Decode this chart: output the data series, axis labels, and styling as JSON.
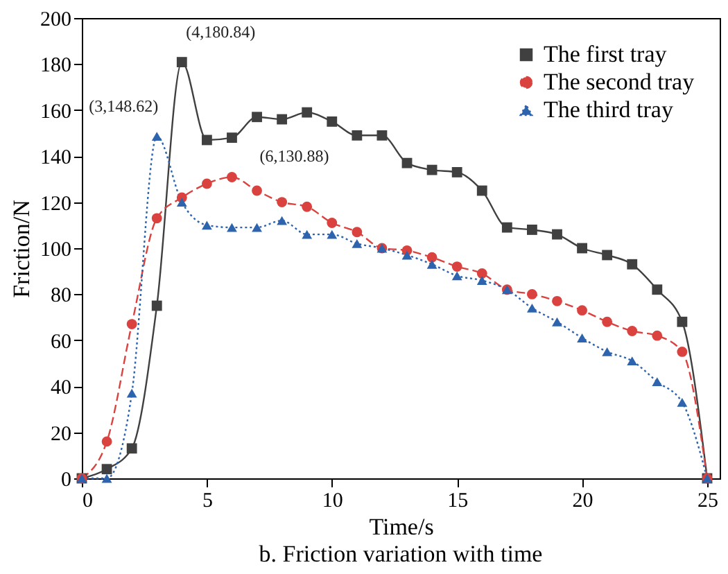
{
  "chart_data": {
    "type": "line",
    "title": "b. Friction variation with time",
    "xlabel": "Time/s",
    "ylabel": "Friction/N",
    "x": [
      0,
      1,
      2,
      3,
      4,
      5,
      6,
      7,
      8,
      9,
      10,
      11,
      12,
      13,
      14,
      15,
      16,
      17,
      18,
      19,
      20,
      21,
      22,
      23,
      24,
      25
    ],
    "series": [
      {
        "name": "The first tray",
        "color": "#404040",
        "marker": "square",
        "line_style": "solid",
        "values": [
          0,
          4,
          13,
          75,
          180.84,
          147,
          148,
          157,
          156,
          159,
          155,
          149,
          149,
          137,
          134,
          133,
          125,
          109,
          108,
          106,
          100,
          97,
          93,
          82,
          68,
          0
        ]
      },
      {
        "name": "The second tray",
        "color": "#d9423f",
        "marker": "circle",
        "line_style": "dashed",
        "values": [
          0,
          16,
          67,
          113,
          122,
          128,
          130.88,
          125,
          120,
          118,
          111,
          107,
          100,
          99,
          96,
          92,
          89,
          82,
          80,
          77,
          73,
          68,
          64,
          62,
          55,
          0
        ]
      },
      {
        "name": "The third tray",
        "color": "#2e64ad",
        "marker": "triangle",
        "line_style": "dotted",
        "values": [
          0,
          0,
          37,
          148.62,
          120,
          110,
          109,
          109,
          112,
          106,
          106,
          102,
          100,
          97,
          93,
          88,
          86,
          82,
          74,
          68,
          61,
          55,
          51,
          42,
          33,
          0
        ]
      }
    ],
    "annotations": [
      {
        "text": "(4,180.84)",
        "x": 4,
        "y": 180.84
      },
      {
        "text": "(3,148.62)",
        "x": 3,
        "y": 148.62
      },
      {
        "text": "(6,130.88)",
        "x": 6,
        "y": 130.88
      }
    ],
    "xlim": [
      0,
      25.5
    ],
    "xticks": [
      0,
      5,
      10,
      15,
      20,
      25
    ],
    "ylim": [
      0,
      200
    ],
    "yticks": [
      0,
      20,
      40,
      60,
      80,
      100,
      120,
      140,
      160,
      180,
      200
    ],
    "grid": false,
    "legend": "top right"
  }
}
